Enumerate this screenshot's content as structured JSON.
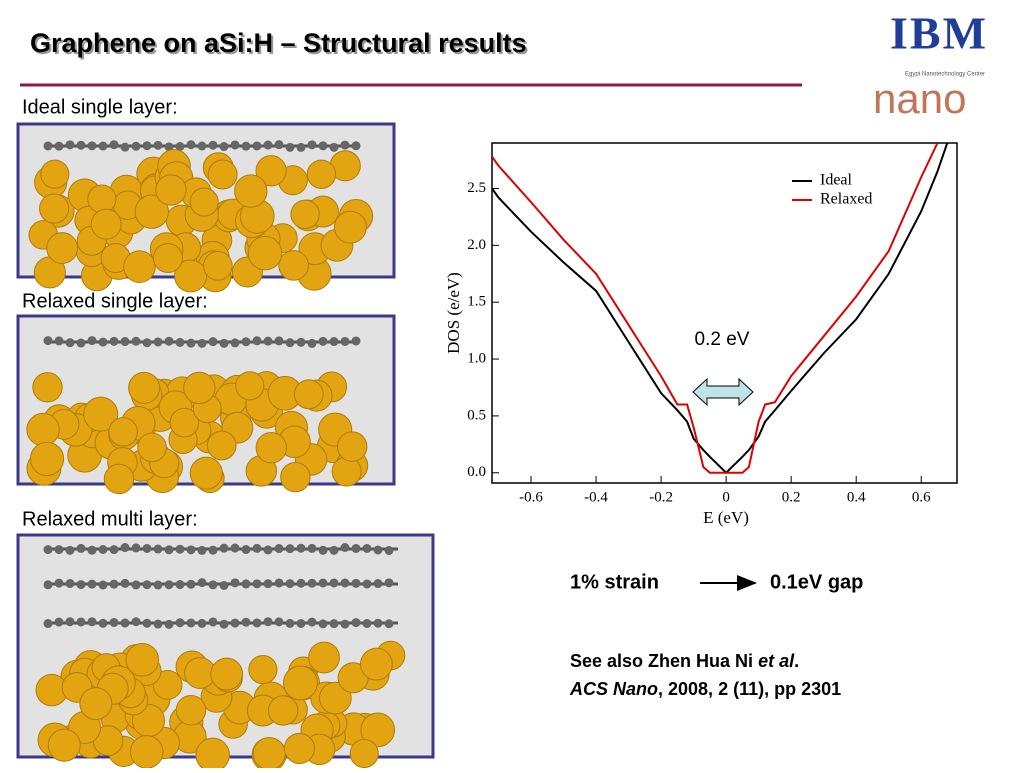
{
  "title": "Graphene on aSi:H – Structural results",
  "logo": {
    "brand": "IBM",
    "center": "Egypt Nanotechnology Center",
    "nano": "nano"
  },
  "panels": [
    "Ideal single layer:",
    "Relaxed single layer:",
    "Relaxed multi layer:"
  ],
  "strain_note": {
    "left": "1% strain",
    "right": "0.1eV gap"
  },
  "reference": {
    "line1_a": "See also Zhen Hua Ni ",
    "line1_b": "et al",
    "line1_c": ".",
    "line2_a": "ACS Nano",
    "line2_b": ", 2008, 2 (11), pp 2301"
  },
  "chart_data": {
    "type": "line",
    "xlabel": "E (eV)",
    "ylabel": "DOS (e/eV)",
    "annotation": "0.2 eV",
    "x": [
      -0.72,
      -0.7,
      -0.6,
      -0.5,
      -0.4,
      -0.3,
      -0.2,
      -0.15,
      -0.12,
      -0.1,
      -0.07,
      -0.05,
      0,
      0.05,
      0.07,
      0.1,
      0.12,
      0.15,
      0.2,
      0.3,
      0.4,
      0.5,
      0.6,
      0.65,
      0.68
    ],
    "series": [
      {
        "name": "Ideal",
        "color": "#000000",
        "values": [
          2.5,
          2.42,
          2.12,
          1.85,
          1.6,
          1.15,
          0.7,
          0.55,
          0.45,
          0.3,
          0.2,
          0.14,
          0,
          0.14,
          0.2,
          0.32,
          0.45,
          0.55,
          0.72,
          1.05,
          1.35,
          1.75,
          2.3,
          2.65,
          2.9
        ]
      },
      {
        "name": "Relaxed",
        "color": "#e00000",
        "values": [
          2.78,
          2.7,
          2.38,
          2.05,
          1.75,
          1.3,
          0.85,
          0.6,
          0.6,
          0.4,
          0.05,
          0,
          0,
          0,
          0.05,
          0.45,
          0.6,
          0.62,
          0.85,
          1.2,
          1.55,
          1.95,
          2.6,
          2.9,
          null
        ]
      }
    ],
    "xlim": [
      -0.72,
      0.71
    ],
    "ylim": [
      -0.09,
      2.9
    ],
    "xticks": [
      -0.6,
      -0.4,
      -0.2,
      0,
      0.2,
      0.4,
      0.6
    ],
    "yticks": [
      {
        "value": 0,
        "label": "0.0"
      },
      0.5,
      {
        "value": 1,
        "label": "1.0"
      },
      1.5,
      {
        "value": 2,
        "label": "2.0"
      },
      2.5
    ],
    "legend": "upper right"
  }
}
